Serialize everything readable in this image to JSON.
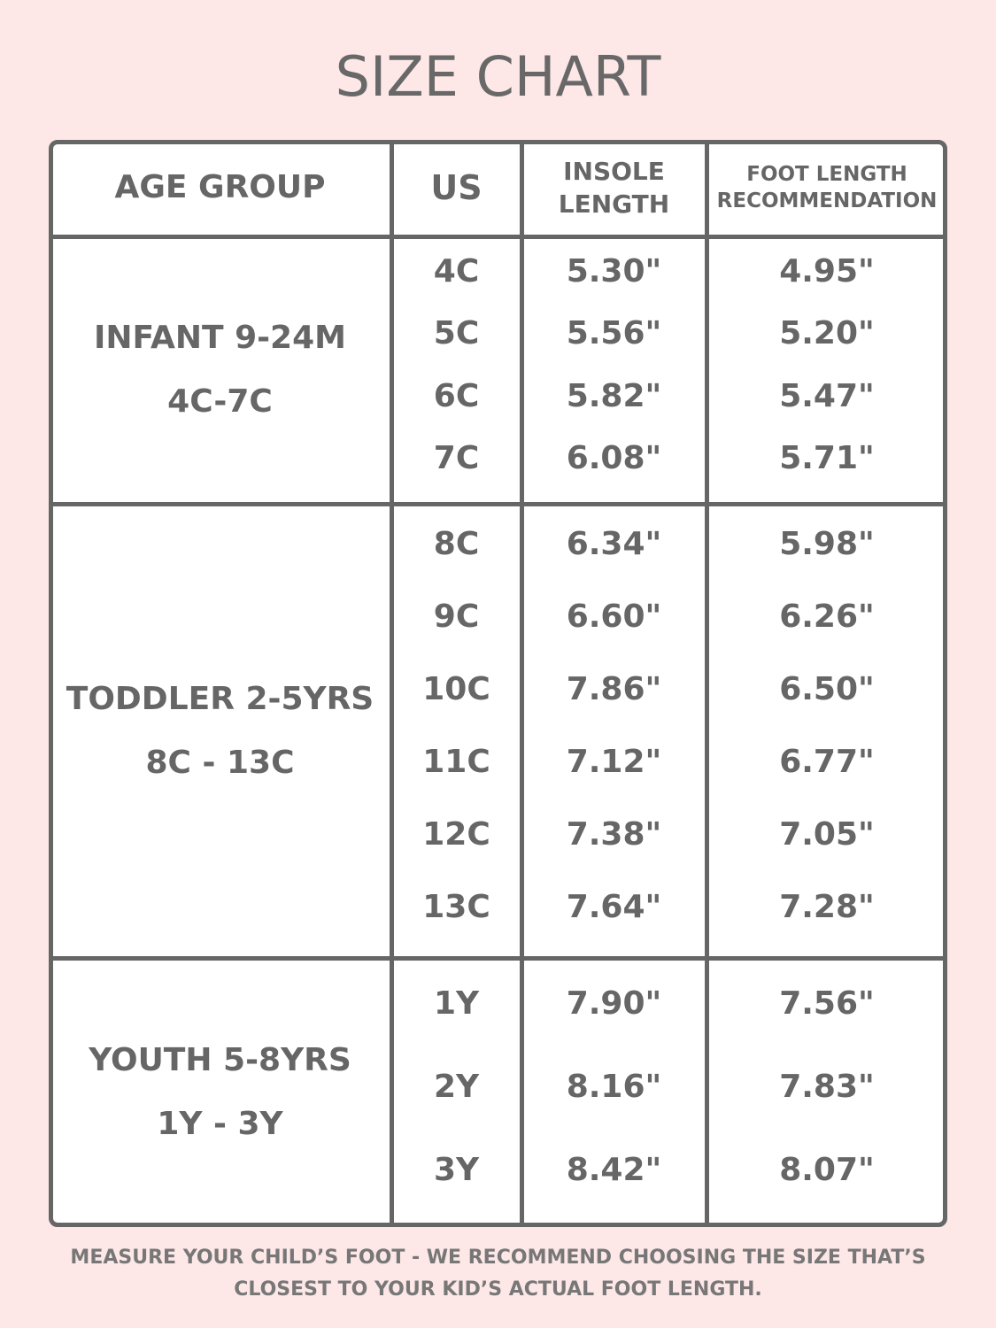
{
  "title": "SIZE CHART",
  "table": {
    "headers": [
      "AGE GROUP",
      "US",
      "INSOLE LENGTH",
      "FOOT LENGTH RECOMMENDATION"
    ],
    "groups": [
      {
        "name": [
          "INFANT 9-24M",
          "4C-7C"
        ],
        "rows": [
          [
            "4C",
            "5.30\"",
            "4.95\""
          ],
          [
            "5C",
            "5.56\"",
            "5.20\""
          ],
          [
            "6C",
            "5.82\"",
            "5.47\""
          ],
          [
            "7C",
            "6.08\"",
            "5.71\""
          ]
        ]
      },
      {
        "name": [
          "TODDLER 2-5YRS",
          "8C - 13C"
        ],
        "rows": [
          [
            "8C",
            "6.34\"",
            "5.98\""
          ],
          [
            "9C",
            "6.60\"",
            "6.26\""
          ],
          [
            "10C",
            "7.86\"",
            "6.50\""
          ],
          [
            "11C",
            "7.12\"",
            "6.77\""
          ],
          [
            "12C",
            "7.38\"",
            "7.05\""
          ],
          [
            "13C",
            "7.64\"",
            "7.28\""
          ]
        ]
      },
      {
        "name": [
          "YOUTH 5-8YRS",
          "1Y - 3Y"
        ],
        "rows": [
          [
            "1Y",
            "7.90\"",
            "7.56\""
          ],
          [
            "2Y",
            "8.16\"",
            "7.83\""
          ],
          [
            "3Y",
            "8.42\"",
            "8.07\""
          ]
        ]
      }
    ]
  },
  "footer": [
    "MEASURE YOUR CHILD’S FOOT - WE RECOMMEND CHOOSING THE SIZE THAT’S",
    "CLOSEST TO YOUR KID’S ACTUAL FOOT LENGTH."
  ]
}
